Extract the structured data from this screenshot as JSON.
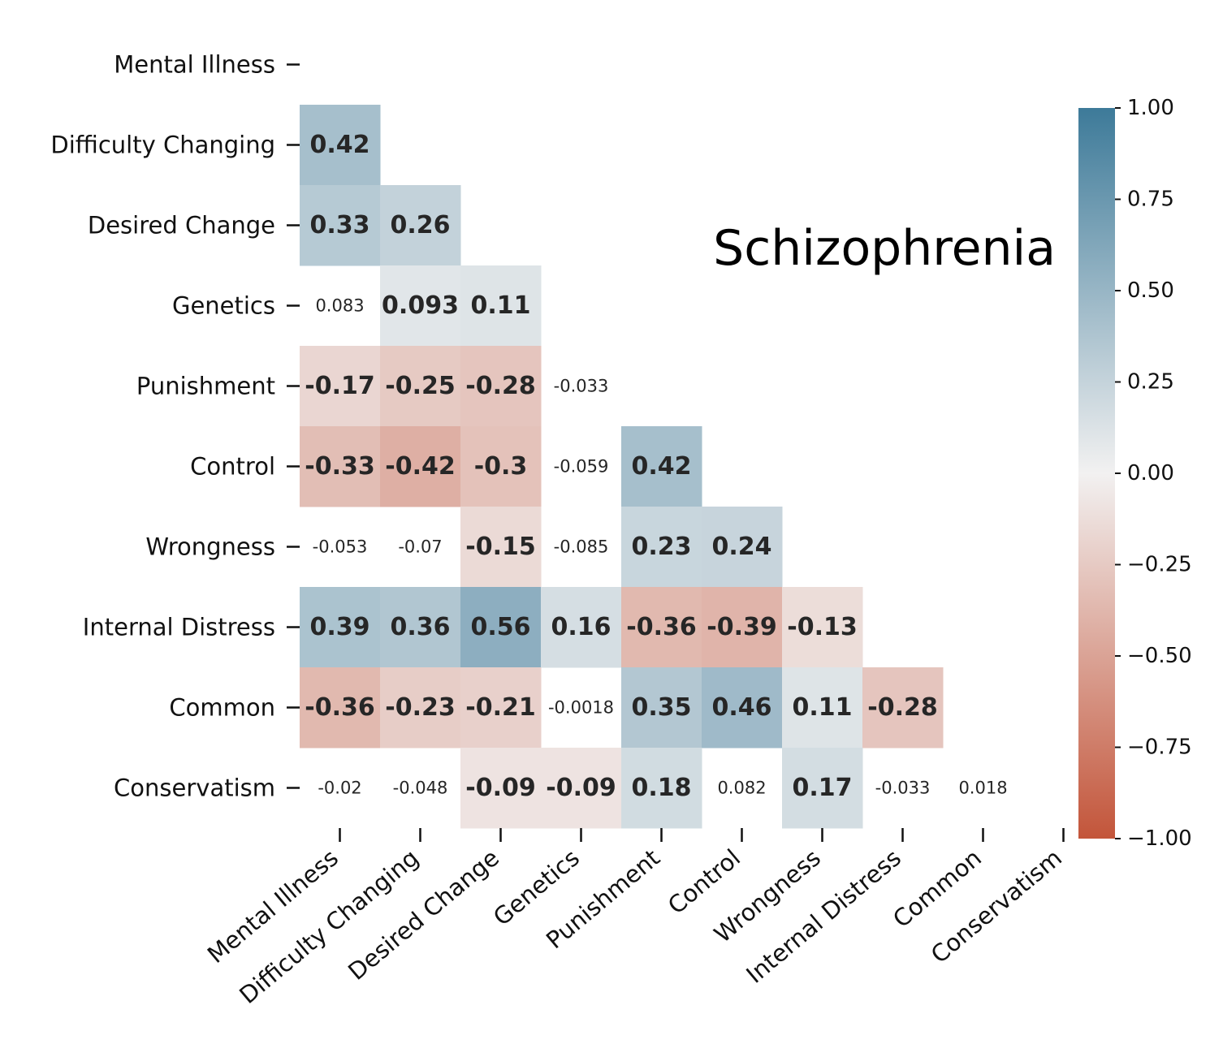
{
  "chart_data": {
    "type": "heatmap",
    "title": "Schizophrenia",
    "variables": [
      "Mental Illness",
      "Difficulty Changing",
      "Desired Change",
      "Genetics",
      "Punishment",
      "Control",
      "Wrongness",
      "Internal Distress",
      "Common",
      "Conservatism"
    ],
    "matrix": [
      [
        null,
        null,
        null,
        null,
        null,
        null,
        null,
        null,
        null,
        null
      ],
      [
        0.42,
        null,
        null,
        null,
        null,
        null,
        null,
        null,
        null,
        null
      ],
      [
        0.33,
        0.26,
        null,
        null,
        null,
        null,
        null,
        null,
        null,
        null
      ],
      [
        0.083,
        0.093,
        0.11,
        null,
        null,
        null,
        null,
        null,
        null,
        null
      ],
      [
        -0.17,
        -0.25,
        -0.28,
        -0.033,
        null,
        null,
        null,
        null,
        null,
        null
      ],
      [
        -0.33,
        -0.42,
        -0.3,
        -0.059,
        0.42,
        null,
        null,
        null,
        null,
        null
      ],
      [
        -0.053,
        -0.07,
        -0.15,
        -0.085,
        0.23,
        0.24,
        null,
        null,
        null,
        null
      ],
      [
        0.39,
        0.36,
        0.56,
        0.16,
        -0.36,
        -0.39,
        -0.13,
        null,
        null,
        null
      ],
      [
        -0.36,
        -0.23,
        -0.21,
        -0.0018,
        0.35,
        0.46,
        0.11,
        -0.28,
        null,
        null
      ],
      [
        -0.02,
        -0.048,
        -0.09,
        -0.09,
        0.18,
        0.082,
        0.17,
        -0.033,
        0.018,
        null
      ]
    ],
    "labels": [
      [
        null,
        null,
        null,
        null,
        null,
        null,
        null,
        null,
        null,
        null
      ],
      [
        "0.42",
        null,
        null,
        null,
        null,
        null,
        null,
        null,
        null,
        null
      ],
      [
        "0.33",
        "0.26",
        null,
        null,
        null,
        null,
        null,
        null,
        null,
        null
      ],
      [
        "0.083",
        "0.093",
        "0.11",
        null,
        null,
        null,
        null,
        null,
        null,
        null
      ],
      [
        "-0.17",
        "-0.25",
        "-0.28",
        "-0.033",
        null,
        null,
        null,
        null,
        null,
        null
      ],
      [
        "-0.33",
        "-0.42",
        "-0.3",
        "-0.059",
        "0.42",
        null,
        null,
        null,
        null,
        null
      ],
      [
        "-0.053",
        "-0.07",
        "-0.15",
        "-0.085",
        "0.23",
        "0.24",
        null,
        null,
        null,
        null
      ],
      [
        "0.39",
        "0.36",
        "0.56",
        "0.16",
        "-0.36",
        "-0.39",
        "-0.13",
        null,
        null,
        null
      ],
      [
        "-0.36",
        "-0.23",
        "-0.21",
        "-0.0018",
        "0.35",
        "0.46",
        "0.11",
        "-0.28",
        null,
        null
      ],
      [
        "-0.02",
        "-0.048",
        "-0.09",
        "-0.09",
        "0.18",
        "0.082",
        "0.17",
        "-0.033",
        "0.018",
        null
      ]
    ],
    "significance_masked": [
      [
        false,
        false,
        false,
        false,
        false,
        false,
        false,
        false,
        false,
        false
      ],
      [
        false,
        false,
        false,
        false,
        false,
        false,
        false,
        false,
        false,
        false
      ],
      [
        false,
        false,
        false,
        false,
        false,
        false,
        false,
        false,
        false,
        false
      ],
      [
        true,
        false,
        false,
        false,
        false,
        false,
        false,
        false,
        false,
        false
      ],
      [
        false,
        false,
        false,
        true,
        false,
        false,
        false,
        false,
        false,
        false
      ],
      [
        false,
        false,
        false,
        true,
        false,
        false,
        false,
        false,
        false,
        false
      ],
      [
        true,
        true,
        false,
        true,
        false,
        false,
        false,
        false,
        false,
        false
      ],
      [
        false,
        false,
        false,
        false,
        false,
        false,
        false,
        false,
        false,
        false
      ],
      [
        false,
        false,
        false,
        true,
        false,
        false,
        false,
        false,
        false,
        false
      ],
      [
        true,
        true,
        false,
        false,
        false,
        true,
        false,
        true,
        true,
        false
      ]
    ],
    "colorbar": {
      "min": -1.0,
      "max": 1.0,
      "ticks": [
        "1.00",
        "0.75",
        "0.50",
        "0.25",
        "0.00",
        "−0.25",
        "−0.50",
        "−0.75",
        "−1.00"
      ],
      "tick_values": [
        1.0,
        0.75,
        0.5,
        0.25,
        0.0,
        -0.25,
        -0.5,
        -0.75,
        -1.0
      ],
      "negative_color": "#c3553a",
      "neutral_color": "#f2f1f1",
      "positive_color": "#3d7a99"
    },
    "grid": false,
    "legend": "colorbar right"
  }
}
